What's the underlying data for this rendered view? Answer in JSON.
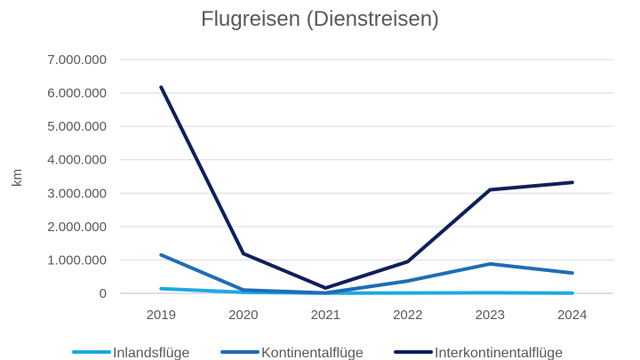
{
  "chart_data": {
    "type": "line",
    "title": "Flugreisen (Dienstreisen)",
    "xlabel": "",
    "ylabel": "km",
    "categories": [
      "2019",
      "2020",
      "2021",
      "2022",
      "2023",
      "2024"
    ],
    "ylim": [
      0,
      7000000
    ],
    "yticks": [
      0,
      1000000,
      2000000,
      3000000,
      4000000,
      5000000,
      6000000,
      7000000
    ],
    "ytick_labels": [
      "0",
      "1.000.000",
      "2.000.000",
      "3.000.000",
      "4.000.000",
      "5.000.000",
      "6.000.000",
      "7.000.000"
    ],
    "grid": true,
    "legend_position": "bottom",
    "series": [
      {
        "name": "Inlandsflüge",
        "color": "#1fa8e4",
        "values": [
          140000,
          30000,
          5000,
          10000,
          15000,
          5000
        ]
      },
      {
        "name": "Kontinentalflüge",
        "color": "#1f6db5",
        "values": [
          1150000,
          100000,
          10000,
          370000,
          880000,
          610000
        ]
      },
      {
        "name": "Interkontinentalflüge",
        "color": "#0f1f5c",
        "values": [
          6170000,
          1190000,
          160000,
          950000,
          3100000,
          3320000
        ]
      }
    ]
  }
}
